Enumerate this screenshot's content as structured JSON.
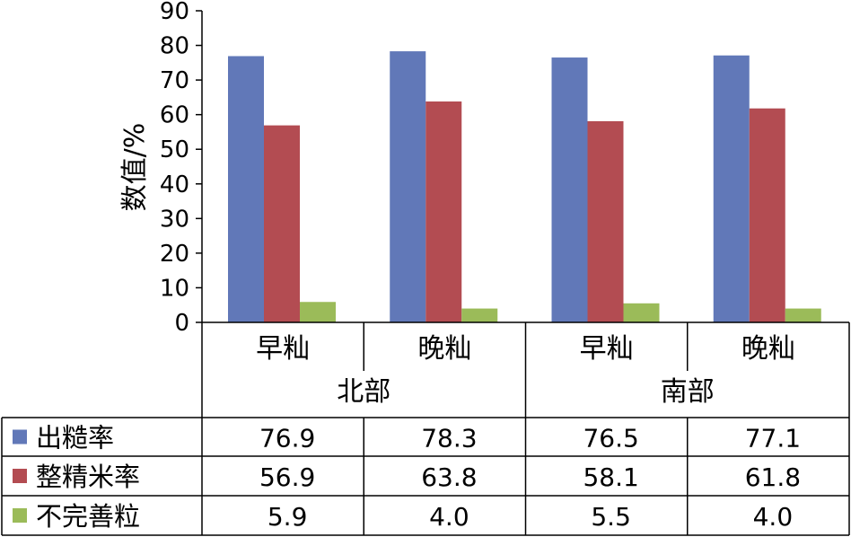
{
  "chart_data": {
    "type": "bar",
    "ylabel": "数值/%",
    "ylim": [
      0,
      90
    ],
    "yticks": [
      0,
      10,
      20,
      30,
      40,
      50,
      60,
      70,
      80,
      90
    ],
    "grid": false,
    "legend": "data-table",
    "categories": [
      "早籼",
      "晚籼",
      "早籼",
      "晚籼"
    ],
    "groups": [
      "北部",
      "南部"
    ],
    "series": [
      {
        "name": "出糙率",
        "color": "#6178B8",
        "values": [
          76.9,
          78.3,
          76.5,
          77.1
        ],
        "labels": [
          "76.9",
          "78.3",
          "76.5",
          "77.1"
        ]
      },
      {
        "name": "整精米率",
        "color": "#B34C52",
        "values": [
          56.9,
          63.8,
          58.1,
          61.8
        ],
        "labels": [
          "56.9",
          "63.8",
          "58.1",
          "61.8"
        ]
      },
      {
        "name": "不完善粒",
        "color": "#9BBB59",
        "values": [
          5.9,
          4.0,
          5.5,
          4.0
        ],
        "labels": [
          "5.9",
          "4.0",
          "5.5",
          "4.0"
        ]
      }
    ]
  }
}
